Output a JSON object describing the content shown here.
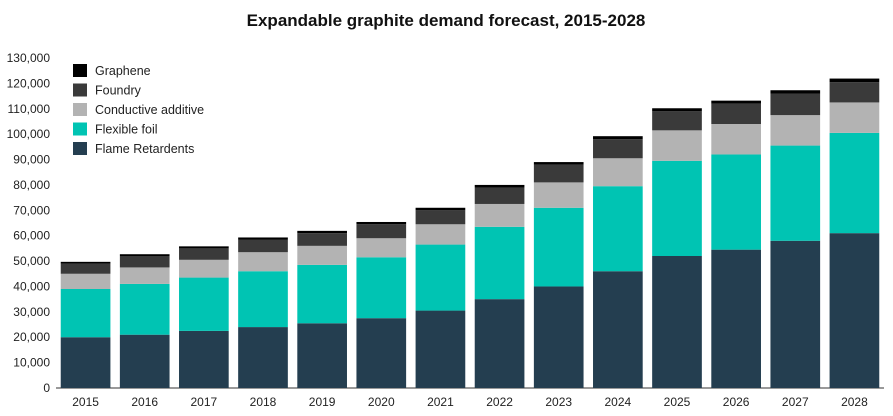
{
  "chart_data": {
    "type": "bar",
    "stacked": true,
    "title": "Expandable graphite demand forecast, 2015-2028",
    "xlabel": "",
    "ylabel": "",
    "ylim": [
      0,
      130000
    ],
    "yticks": [
      0,
      10000,
      20000,
      30000,
      40000,
      50000,
      60000,
      70000,
      80000,
      90000,
      100000,
      110000,
      120000,
      130000
    ],
    "ytick_labels": [
      "0",
      "10,000",
      "20,000",
      "30,000",
      "40,000",
      "50,000",
      "60,000",
      "70,000",
      "80,000",
      "90,000",
      "100,000",
      "110,000",
      "120,000",
      "130,000"
    ],
    "grid": false,
    "legend_position": "top-left",
    "categories": [
      "2015",
      "2016",
      "2017",
      "2018",
      "2019",
      "2020",
      "2021",
      "2022",
      "2023",
      "2024",
      "2025",
      "2026",
      "2027",
      "2028"
    ],
    "series": [
      {
        "name": "Flame Retardents",
        "color": "#243e50",
        "values": [
          20000,
          21000,
          22500,
          24000,
          25500,
          27500,
          30500,
          35000,
          40000,
          46000,
          52000,
          54500,
          58000,
          61000
        ]
      },
      {
        "name": "Flexible foil",
        "color": "#00c4b3",
        "values": [
          19000,
          20000,
          21000,
          22000,
          23000,
          24000,
          26000,
          28500,
          31000,
          33500,
          37500,
          37500,
          37500,
          39500
        ]
      },
      {
        "name": "Conductive additive",
        "color": "#b3b3b3",
        "values": [
          6000,
          6500,
          7000,
          7500,
          7500,
          7500,
          8000,
          9000,
          10000,
          11000,
          12000,
          12000,
          12000,
          12000
        ]
      },
      {
        "name": "Foundry",
        "color": "#3a3a3a",
        "values": [
          4000,
          4500,
          4500,
          5000,
          5000,
          5500,
          5500,
          6500,
          7000,
          7500,
          7500,
          8000,
          8500,
          8000
        ]
      },
      {
        "name": "Graphene",
        "color": "#000000",
        "values": [
          700,
          700,
          800,
          800,
          900,
          900,
          1000,
          1000,
          1000,
          1200,
          1200,
          1200,
          1300,
          1400
        ]
      }
    ]
  }
}
